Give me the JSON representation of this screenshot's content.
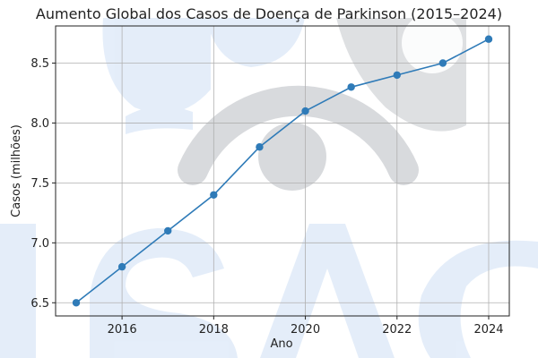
{
  "colors": {
    "line": "#2f7bb8",
    "marker": "#2f7bb8",
    "grid": "#b0b0b0",
    "axis": "#222222",
    "watermark_gray": "#b9bcc2",
    "watermark_blue": "#cfe0f5"
  },
  "chart_data": {
    "type": "line",
    "title": "Aumento Global dos Casos de Doença de Parkinson (2015–2024)",
    "xlabel": "Ano",
    "ylabel": "Casos (milhões)",
    "x": [
      2015,
      2016,
      2017,
      2018,
      2019,
      2020,
      2021,
      2022,
      2023,
      2024
    ],
    "series": [
      {
        "values": [
          6.5,
          6.8,
          7.1,
          7.4,
          7.8,
          8.1,
          8.3,
          8.4,
          8.5,
          8.7
        ]
      }
    ],
    "xlim": [
      2014.55,
      2024.45
    ],
    "ylim": [
      6.39,
      8.81
    ],
    "xticks": [
      2016,
      2018,
      2020,
      2022,
      2024
    ],
    "xtick_labels": [
      "2016",
      "2018",
      "2020",
      "2022",
      "2024"
    ],
    "yticks": [
      6.5,
      7.0,
      7.5,
      8.0,
      8.5
    ],
    "ytick_labels": [
      "6.5",
      "7.0",
      "7.5",
      "8.0",
      "8.5"
    ],
    "grid": true,
    "marker": "circle"
  }
}
